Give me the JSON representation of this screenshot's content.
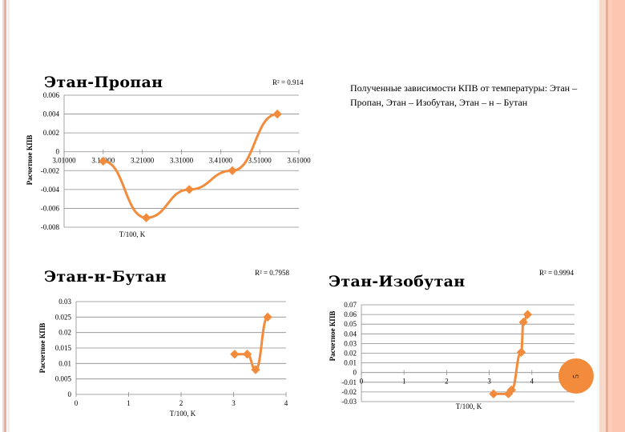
{
  "slide": {
    "heading": "Полученные зависимости КПВ от температуры: Этан – Пропан, Этан – Изобутан, Этан – н – Бутан",
    "page_number": "5",
    "colors": {
      "series": "#f28c3c",
      "accent_stripe": "#e8b8a8",
      "right_band": "#fbc9b4",
      "grid": "#8c8c8c"
    }
  },
  "chart_data": [
    {
      "type": "line",
      "title": "Этан-Пропан",
      "annotation": "R² = 0.914",
      "xlabel": "T/100, K",
      "ylabel": "Расчетное КПВ",
      "xlim": [
        3.01,
        3.61
      ],
      "ylim": [
        -0.008,
        0.006
      ],
      "xticks": [
        "3.01000",
        "3.11000",
        "3.21000",
        "3.31000",
        "3.41000",
        "3.51000",
        "3.61000"
      ],
      "yticks": [
        "0.006",
        "0.004",
        "0.002",
        "0",
        "-0.002",
        "-0.004",
        "-0.006",
        "-0.008"
      ],
      "grid": true,
      "x": [
        3.11,
        3.22,
        3.33,
        3.44,
        3.555
      ],
      "y": [
        -0.001,
        -0.007,
        -0.004,
        -0.002,
        0.004
      ]
    },
    {
      "type": "line",
      "title": "Этан-н-Бутан",
      "annotation": "R² = 0.7958",
      "xlabel": "T/100, K",
      "ylabel": "Расчетное КПВ",
      "xlim": [
        0,
        4
      ],
      "ylim": [
        0,
        0.03
      ],
      "xticks": [
        "0",
        "1",
        "2",
        "3",
        "4"
      ],
      "yticks": [
        "0.03",
        "0.025",
        "0.02",
        "0.015",
        "0.01",
        "0.005",
        "0"
      ],
      "grid": true,
      "x": [
        3.02,
        3.26,
        3.42,
        3.65
      ],
      "y": [
        0.013,
        0.013,
        0.008,
        0.025
      ]
    },
    {
      "type": "line",
      "title": "Этан-Изобутан",
      "annotation": "R² = 0.9994",
      "xlabel": "T/100, K",
      "ylabel": "Расчетное КПВ",
      "xlim": [
        0,
        5
      ],
      "ylim": [
        -0.03,
        0.07
      ],
      "xticks": [
        "0",
        "1",
        "2",
        "3",
        "4",
        "5"
      ],
      "yticks": [
        "0.07",
        "0.06",
        "0.05",
        "0.04",
        "0.03",
        "0.02",
        "0.01",
        "0",
        "-0.01",
        "-0.02",
        "-0.03"
      ],
      "grid": true,
      "x": [
        3.1,
        3.45,
        3.52,
        3.75,
        3.8,
        3.9
      ],
      "y": [
        -0.022,
        -0.022,
        -0.018,
        0.021,
        0.052,
        0.06
      ]
    }
  ]
}
